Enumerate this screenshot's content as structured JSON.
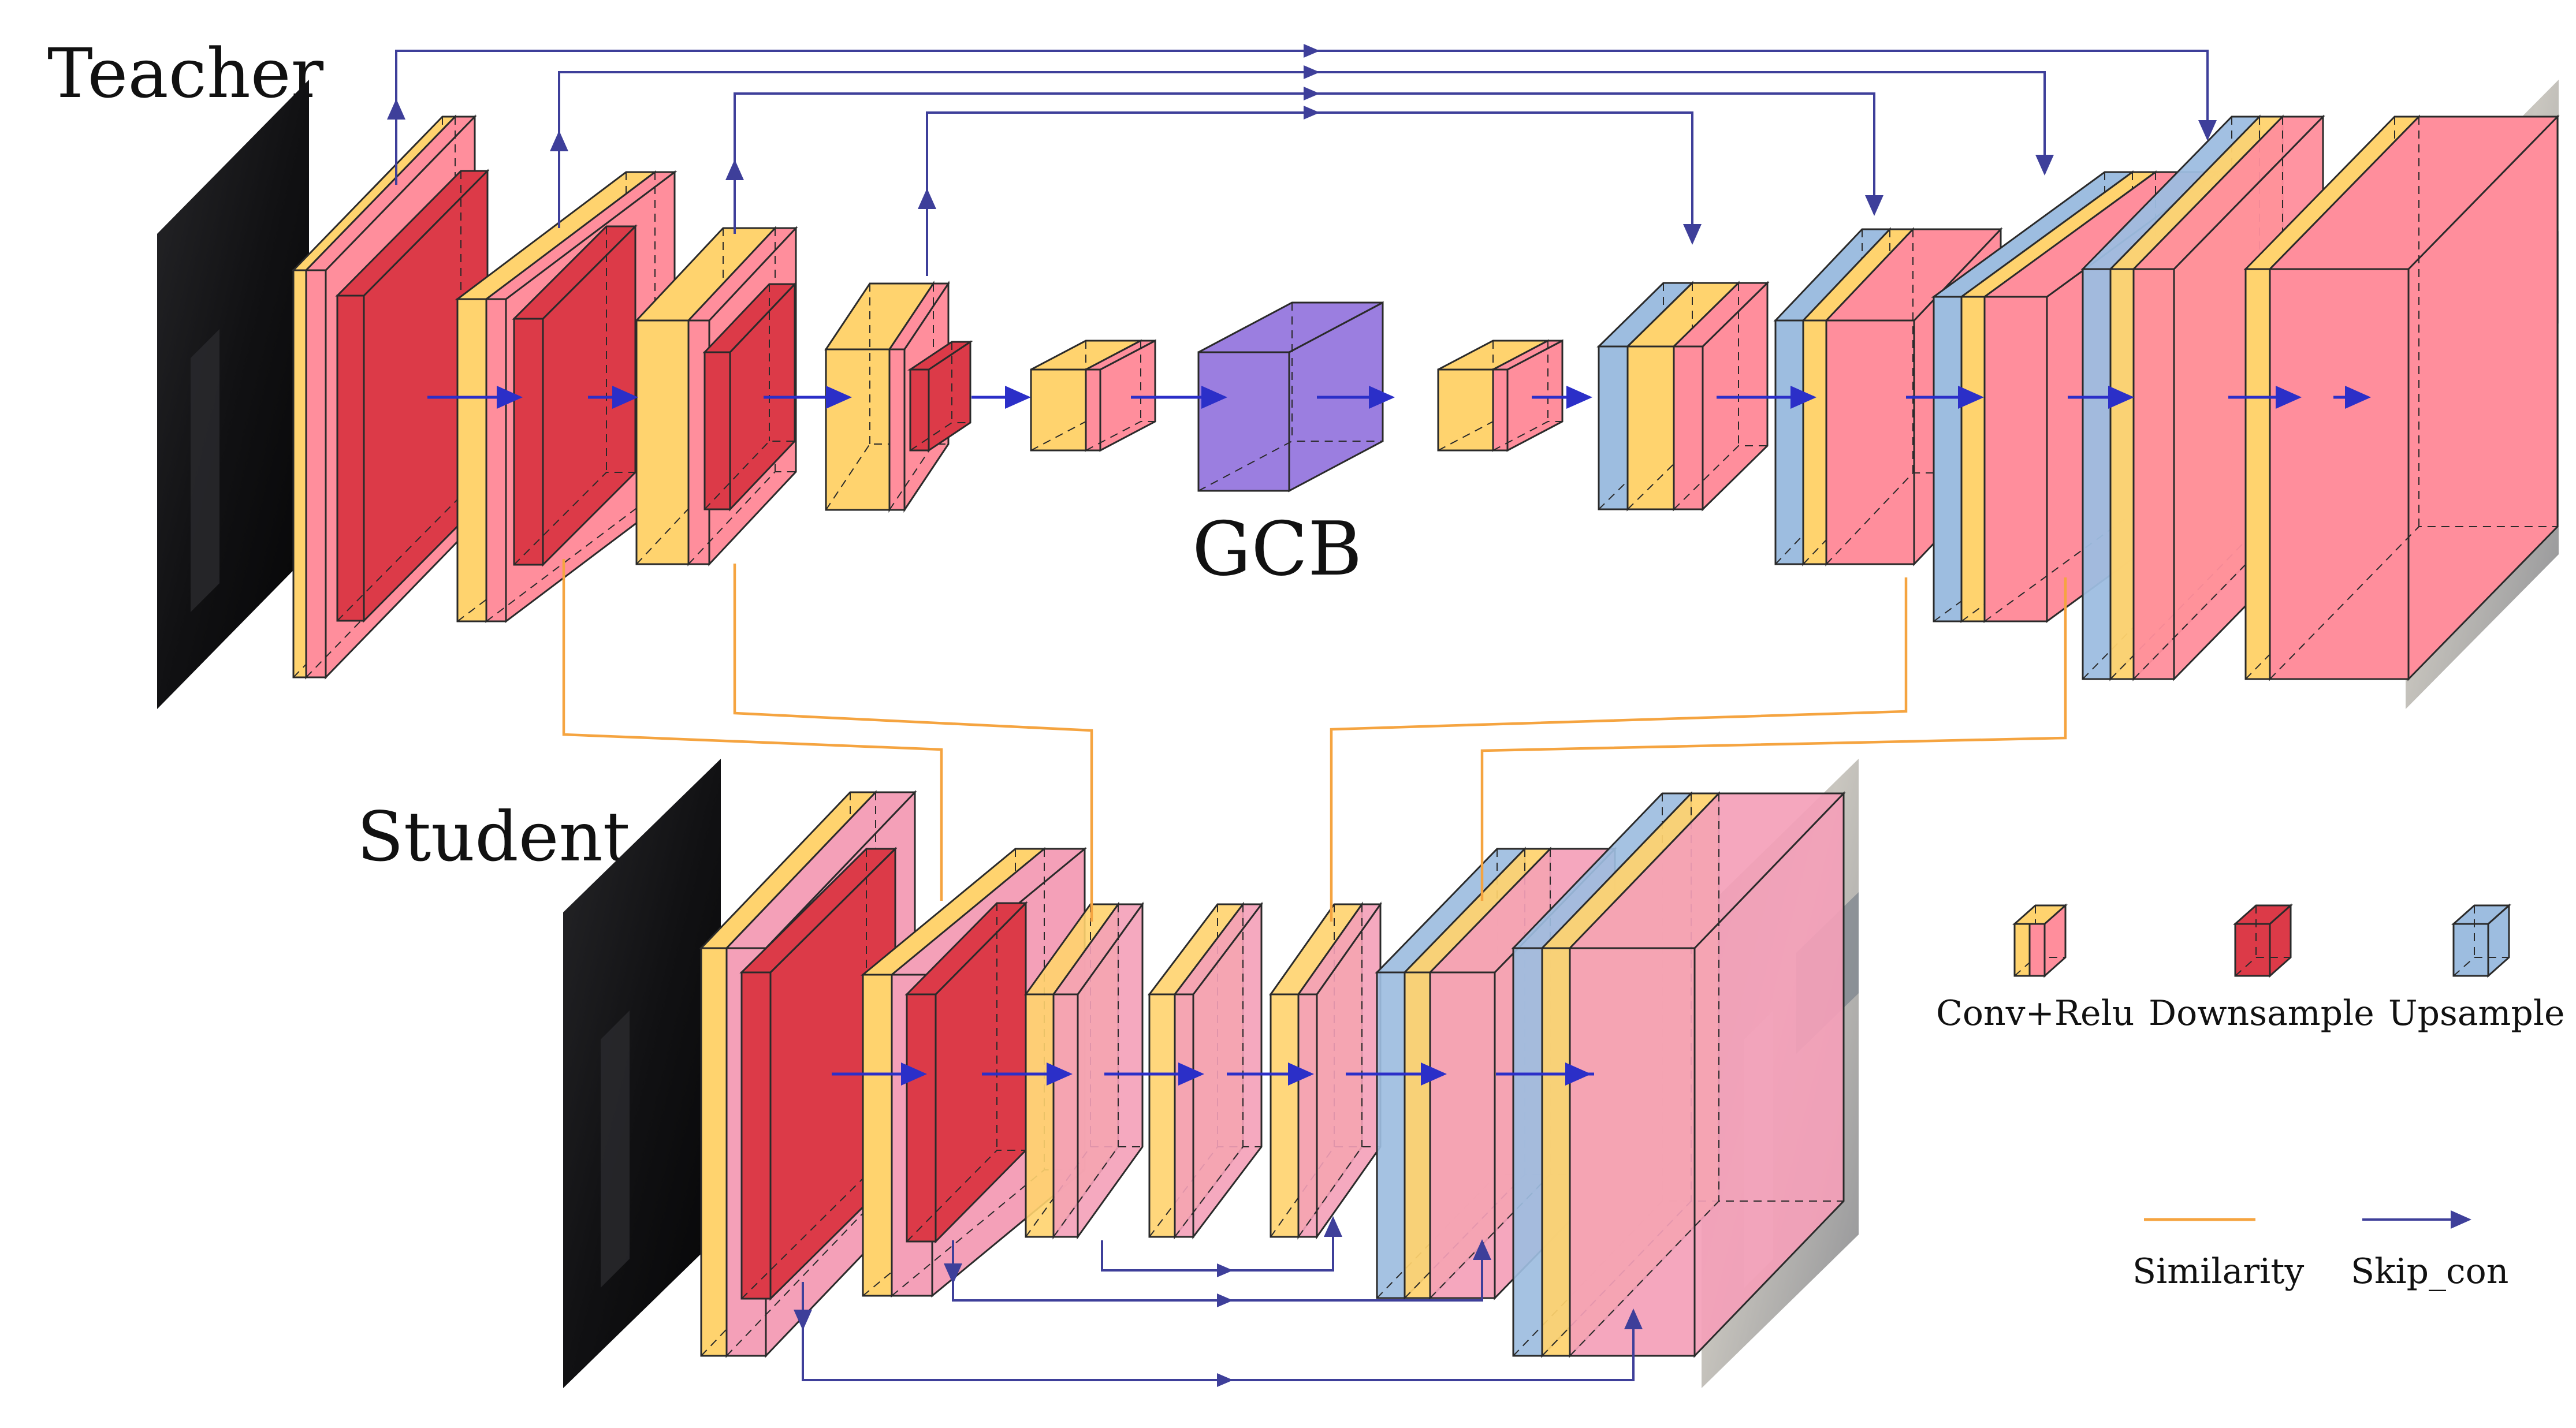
{
  "labels": {
    "teacher": "Teacher",
    "student": "Student",
    "gcb": "GCB"
  },
  "legend": {
    "conv_relu": "Conv+Relu",
    "downsample": "Downsample",
    "upsample": "Upsample",
    "similarity": "Similarity",
    "skip_con": "Skip_con"
  },
  "colors": {
    "conv_yellow": "#FFD36E",
    "relu_pink": "#FF8E9C",
    "student_pink": "#F4A0B8",
    "downsample_red": "#DC3A48",
    "upsample_blue": "#9DBDE0",
    "gcb_purple": "#9B7EE0",
    "similarity_orange": "#F5A440",
    "skip_blue": "#3E3F9A",
    "inner_arrow": "#2B2FC8"
  },
  "icons": {
    "input_teacher": "dark-input-image",
    "output_teacher": "enhanced-output-image",
    "input_student": "dark-input-image",
    "output_student": "enhanced-output-image"
  }
}
